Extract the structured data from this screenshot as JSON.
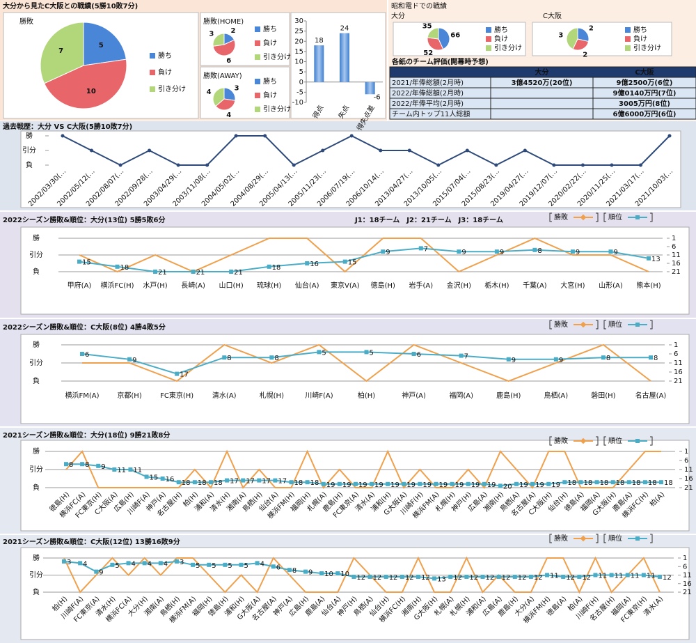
{
  "headings": {
    "left": "大分から見たC大阪との戦績(5勝10敗7分)",
    "right": "昭和電ドでの戦績"
  },
  "table": {
    "title": "各紙のチーム評価(開幕時予想)",
    "columns": [
      "大分",
      "C大阪"
    ],
    "rows": [
      {
        "label": "2021/年俸総額(2月時)",
        "cells": [
          "3億4520万(20位)",
          "9億2500万(6位)"
        ]
      },
      {
        "label": "2022/年俸総額(2月時)",
        "cells": [
          null,
          "9億0140万円(7位)"
        ]
      },
      {
        "label": "2022/年俸平均(2月時)",
        "cells": [
          null,
          "3005万円(8位)"
        ]
      },
      {
        "label": "チーム内トップ11人総額",
        "cells": [
          null,
          "6億6000万円(6位)"
        ]
      }
    ]
  },
  "chart_data": [
    {
      "type": "pie",
      "title": "勝敗",
      "categories": [
        "勝ち",
        "負け",
        "引き分け"
      ],
      "values": [
        5,
        10,
        7
      ],
      "colors": [
        "#4a86d8",
        "#e8656a",
        "#b2d67a"
      ]
    },
    {
      "type": "pie",
      "title": "勝敗(HOME)",
      "categories": [
        "勝ち",
        "負け",
        "引き分け"
      ],
      "values": [
        2,
        6,
        3
      ],
      "colors": [
        "#4a86d8",
        "#e8656a",
        "#b2d67a"
      ]
    },
    {
      "type": "pie",
      "title": "勝敗(AWAY)",
      "categories": [
        "勝ち",
        "負け",
        "引き分け"
      ],
      "values": [
        3,
        4,
        4
      ],
      "colors": [
        "#4a86d8",
        "#e8656a",
        "#b2d67a"
      ]
    },
    {
      "type": "bar",
      "categories": [
        "得点",
        "失点",
        "得失点差"
      ],
      "values": [
        18,
        24,
        -6
      ],
      "color": "#5b9bd5",
      "ylim": [
        -10,
        30
      ],
      "yticks": [
        -10,
        -5,
        0,
        5,
        10,
        15,
        20,
        25,
        30
      ],
      "grid": false
    },
    {
      "type": "pie",
      "title": "大分",
      "categories": [
        "勝ち",
        "負け",
        "引き分け"
      ],
      "values": [
        66,
        52,
        35
      ],
      "colors": [
        "#4a86d8",
        "#e8656a",
        "#b2d67a"
      ]
    },
    {
      "type": "pie",
      "title": "C大阪",
      "categories": [
        "勝ち",
        "負け",
        "引き分け"
      ],
      "values": [
        2,
        2,
        3
      ],
      "colors": [
        "#4a86d8",
        "#e8656a",
        "#b2d67a"
      ]
    },
    {
      "type": "line",
      "title": "過去戦歴：大分 VS C大阪(5勝10敗7分)",
      "categories": [
        "2002/03/30(…",
        "2002/05/12(…",
        "2002/08/07(…",
        "2002/09/28(…",
        "2003/04/29(…",
        "2003/11/08(…",
        "2004/05/02(…",
        "2004/08/29(…",
        "2005/04/13(…",
        "2005/11/23(…",
        "2006/07/19(…",
        "2006/10/14(…",
        "2013/04/27(…",
        "2013/10/05(…",
        "2015/07/04(…",
        "2015/08/23(…",
        "2019/04/27(…",
        "2019/12/07(…",
        "2020/02/22(…",
        "2020/11/25(…",
        "2021/03/17(…",
        "2021/10/03(…"
      ],
      "values": [
        1,
        0,
        -1,
        0,
        -1,
        -1,
        1,
        1,
        -1,
        0,
        1,
        0,
        0,
        -1,
        0,
        -1,
        0,
        -1,
        -1,
        -1,
        -1,
        1
      ],
      "color": "#2e4a7a",
      "ylim": [
        -1,
        1
      ],
      "yticks": [
        {
          "value": 1,
          "label": "勝"
        },
        {
          "value": 0,
          "label": "引分"
        },
        {
          "value": -1,
          "label": "負"
        }
      ],
      "grid": false
    },
    {
      "type": "line",
      "title": "2022シーズン勝敗&順位：大分(13位) 5勝5敗6分",
      "annotation": "J1：18チーム　J2：21チーム　J3：18チーム",
      "categories": [
        "甲府(A)",
        "横浜FC(H)",
        "水戸(H)",
        "長崎(A)",
        "山口(H)",
        "琉球(H)",
        "仙台(A)",
        "東京V(A)",
        "徳島(H)",
        "岩手(A)",
        "金沢(H)",
        "栃木(H)",
        "千葉(A)",
        "大宮(H)",
        "山形(A)",
        "熊本(H)"
      ],
      "series": [
        {
          "name": "勝敗",
          "color": "#f0a04b",
          "values": [
            0,
            -1,
            0,
            -1,
            0,
            1,
            1,
            -1,
            1,
            1,
            -1,
            0,
            1,
            0,
            0,
            -1
          ]
        },
        {
          "name": "順位",
          "color": "#4bacc6",
          "axis": "y2",
          "values": [
            15,
            18,
            21,
            21,
            21,
            18,
            16,
            15,
            9,
            7,
            9,
            9,
            8,
            9,
            9,
            13
          ]
        }
      ],
      "ylim": [
        -1,
        1
      ],
      "yticks": [
        {
          "value": 1,
          "label": "勝"
        },
        {
          "value": 0,
          "label": "引分"
        },
        {
          "value": -1,
          "label": "負"
        }
      ],
      "y2lim": [
        1,
        21
      ],
      "y2_reversed": true,
      "y2ticks": [
        1,
        6,
        11,
        16,
        21
      ],
      "grid": true
    },
    {
      "type": "line",
      "title": "2022シーズン勝敗&順位：C大阪(8位) 4勝4敗5分",
      "categories": [
        "横浜FM(A)",
        "京都(H)",
        "FC東京(H)",
        "清水(A)",
        "札幌(H)",
        "川崎F(A)",
        "柏(H)",
        "神戸(A)",
        "福岡(A)",
        "鹿島(H)",
        "鳥栖(A)",
        "磐田(H)",
        "名古屋(A)"
      ],
      "series": [
        {
          "name": "勝敗",
          "color": "#f0a04b",
          "values": [
            0,
            0,
            -1,
            1,
            0,
            1,
            -1,
            1,
            0,
            -1,
            0,
            1,
            -1
          ]
        },
        {
          "name": "順位",
          "color": "#4bacc6",
          "axis": "y2",
          "values": [
            6,
            9,
            17,
            8,
            8,
            5,
            5,
            6,
            7,
            9,
            9,
            8,
            8
          ]
        }
      ],
      "ylim": [
        -1,
        1
      ],
      "yticks": [
        {
          "value": 1,
          "label": "勝"
        },
        {
          "value": 0,
          "label": "引分"
        },
        {
          "value": -1,
          "label": "負"
        }
      ],
      "y2lim": [
        1,
        21
      ],
      "y2_reversed": true,
      "y2ticks": [
        1,
        6,
        11,
        16,
        21
      ],
      "grid": true
    },
    {
      "type": "line",
      "title": "2021シーズン勝敗&順位：大分(18位) 9勝21敗8分",
      "categories": [
        "徳島(H)",
        "横浜FC(A)",
        "FC東京(H)",
        "C大阪(A)",
        "広島(H)",
        "川崎F(A)",
        "神戸(A)",
        "名古屋(H)",
        "柏(H)",
        "浦和(A)",
        "清水(H)",
        "湘南(A)",
        "鳥栖(H)",
        "仙台(A)",
        "横浜FM(H)",
        "福岡(H)",
        "札幌(A)",
        "鹿島(H)",
        "FC東京(A)",
        "清水(A)",
        "浦和(H)",
        "G大阪(A)",
        "川崎F(H)",
        "横浜FM(A)",
        "札幌(H)",
        "神戸(H)",
        "広島(A)",
        "湘南(H)",
        "鳥栖(A)",
        "名古屋(A)",
        "C大阪(H)",
        "仙台(H)",
        "徳島(A)",
        "福岡(A)",
        "G大阪(H)",
        "鹿島(A)",
        "横浜FC(H)",
        "柏(A)"
      ],
      "series": [
        {
          "name": "勝敗",
          "color": "#f0a04b",
          "values": [
            0,
            1,
            -1,
            -1,
            -1,
            -1,
            -1,
            -1,
            0,
            -1,
            1,
            -1,
            0,
            -1,
            -1,
            1,
            -1,
            0,
            -1,
            -1,
            1,
            -1,
            0,
            -1,
            -1,
            0,
            -1,
            1,
            0,
            -1,
            1,
            1,
            -1,
            -1,
            -1,
            0,
            1,
            1
          ]
        },
        {
          "name": "順位",
          "color": "#4bacc6",
          "axis": "y2",
          "values": [
            8,
            8,
            9,
            11,
            11,
            15,
            16,
            18,
            18,
            18,
            17,
            17,
            17,
            17,
            18,
            18,
            19,
            19,
            19,
            19,
            19,
            19,
            19,
            19,
            19,
            19,
            19,
            20,
            19,
            19,
            19,
            18,
            18,
            18,
            18,
            18,
            18,
            18
          ]
        }
      ],
      "ylim": [
        -1,
        1
      ],
      "yticks": [
        {
          "value": 1,
          "label": "勝"
        },
        {
          "value": 0,
          "label": "引分"
        },
        {
          "value": -1,
          "label": "負"
        }
      ],
      "y2lim": [
        1,
        21
      ],
      "y2_reversed": true,
      "y2ticks": [
        1,
        6,
        11,
        16,
        21
      ],
      "grid": true
    },
    {
      "type": "line",
      "title": "2021シーズン勝敗&順位：C大阪(12位) 13勝16敗9分",
      "categories": [
        "柏(H)",
        "川崎F(A)",
        "FC東京(A)",
        "清水(H)",
        "横浜FC(A)",
        "大分(H)",
        "湘南(A)",
        "鳥栖(H)",
        "横浜FM(A)",
        "福岡(H)",
        "徳島(H)",
        "浦和(H)",
        "G大阪(A)",
        "名古屋(A)",
        "神戸(A)",
        "広島(H)",
        "鹿島(A)",
        "仙台(A)",
        "神戸(H)",
        "鳥栖(A)",
        "仙台(H)",
        "横浜FC(H)",
        "湘南(H)",
        "G大阪(H)",
        "札幌(A)",
        "札幌(H)",
        "浦和(A)",
        "広島(A)",
        "鹿島(H)",
        "大分(A)",
        "横浜FM(H)",
        "徳島(A)",
        "柏(A)",
        "川崎F(H)",
        "名古屋(H)",
        "福岡(A)",
        "FC東京(H)",
        "清水(A)"
      ],
      "series": [
        {
          "name": "勝敗",
          "color": "#f0a04b",
          "values": [
            1,
            -1,
            0,
            1,
            0,
            1,
            0,
            1,
            1,
            0,
            -1,
            0,
            -1,
            1,
            0,
            -1,
            -1,
            -1,
            1,
            0,
            -1,
            -1,
            1,
            -1,
            -1,
            1,
            -1,
            0,
            -1,
            -1,
            1,
            1,
            -1,
            1,
            -1,
            0,
            1,
            -1
          ]
        },
        {
          "name": "順位",
          "color": "#4bacc6",
          "axis": "y2",
          "values": [
            3,
            4,
            9,
            5,
            4,
            4,
            4,
            3,
            5,
            5,
            5,
            5,
            4,
            6,
            8,
            9,
            10,
            10,
            12,
            12,
            12,
            12,
            12,
            13,
            12,
            12,
            12,
            12,
            12,
            12,
            11,
            12,
            12,
            11,
            11,
            11,
            11,
            12
          ]
        }
      ],
      "ylim": [
        -1,
        1
      ],
      "yticks": [
        {
          "value": 1,
          "label": "勝"
        },
        {
          "value": 0,
          "label": "引分"
        },
        {
          "value": -1,
          "label": "負"
        }
      ],
      "y2lim": [
        1,
        21
      ],
      "y2_reversed": true,
      "y2ticks": [
        1,
        6,
        11,
        16,
        21
      ],
      "grid": true
    }
  ]
}
